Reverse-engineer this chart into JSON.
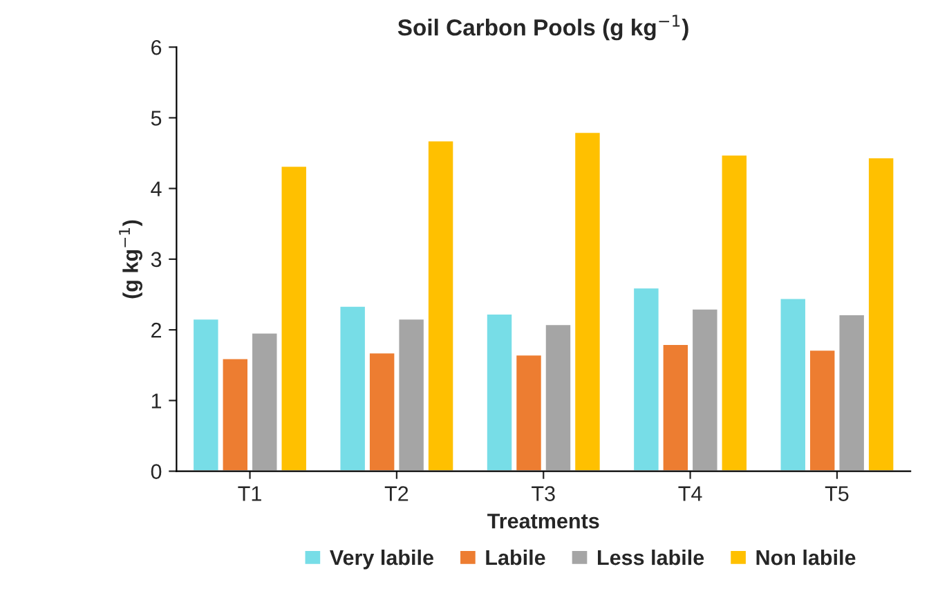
{
  "chart_data": {
    "type": "bar",
    "title": "Soil Carbon Pools (g kg$^{−1}$)",
    "xlabel": "Treatments",
    "ylabel": "(g kg$^{−1}$)",
    "categories": [
      "T1",
      "T2",
      "T3",
      "T4",
      "T5"
    ],
    "series": [
      {
        "name": "Very labile",
        "color": "#77dde7",
        "values": [
          2.16,
          2.34,
          2.23,
          2.6,
          2.45
        ]
      },
      {
        "name": "Labile",
        "color": "#ed7d31",
        "values": [
          1.6,
          1.68,
          1.65,
          1.8,
          1.72
        ]
      },
      {
        "name": "Less labile",
        "color": "#a5a5a5",
        "values": [
          1.96,
          2.16,
          2.08,
          2.3,
          2.22
        ]
      },
      {
        "name": "Non labile",
        "color": "#ffc000",
        "values": [
          4.32,
          4.68,
          4.8,
          4.48,
          4.44
        ]
      }
    ],
    "ylim": [
      0,
      6
    ],
    "yticks": [
      0,
      1,
      2,
      3,
      4,
      5,
      6
    ],
    "grid": false,
    "legend": "bottom"
  }
}
